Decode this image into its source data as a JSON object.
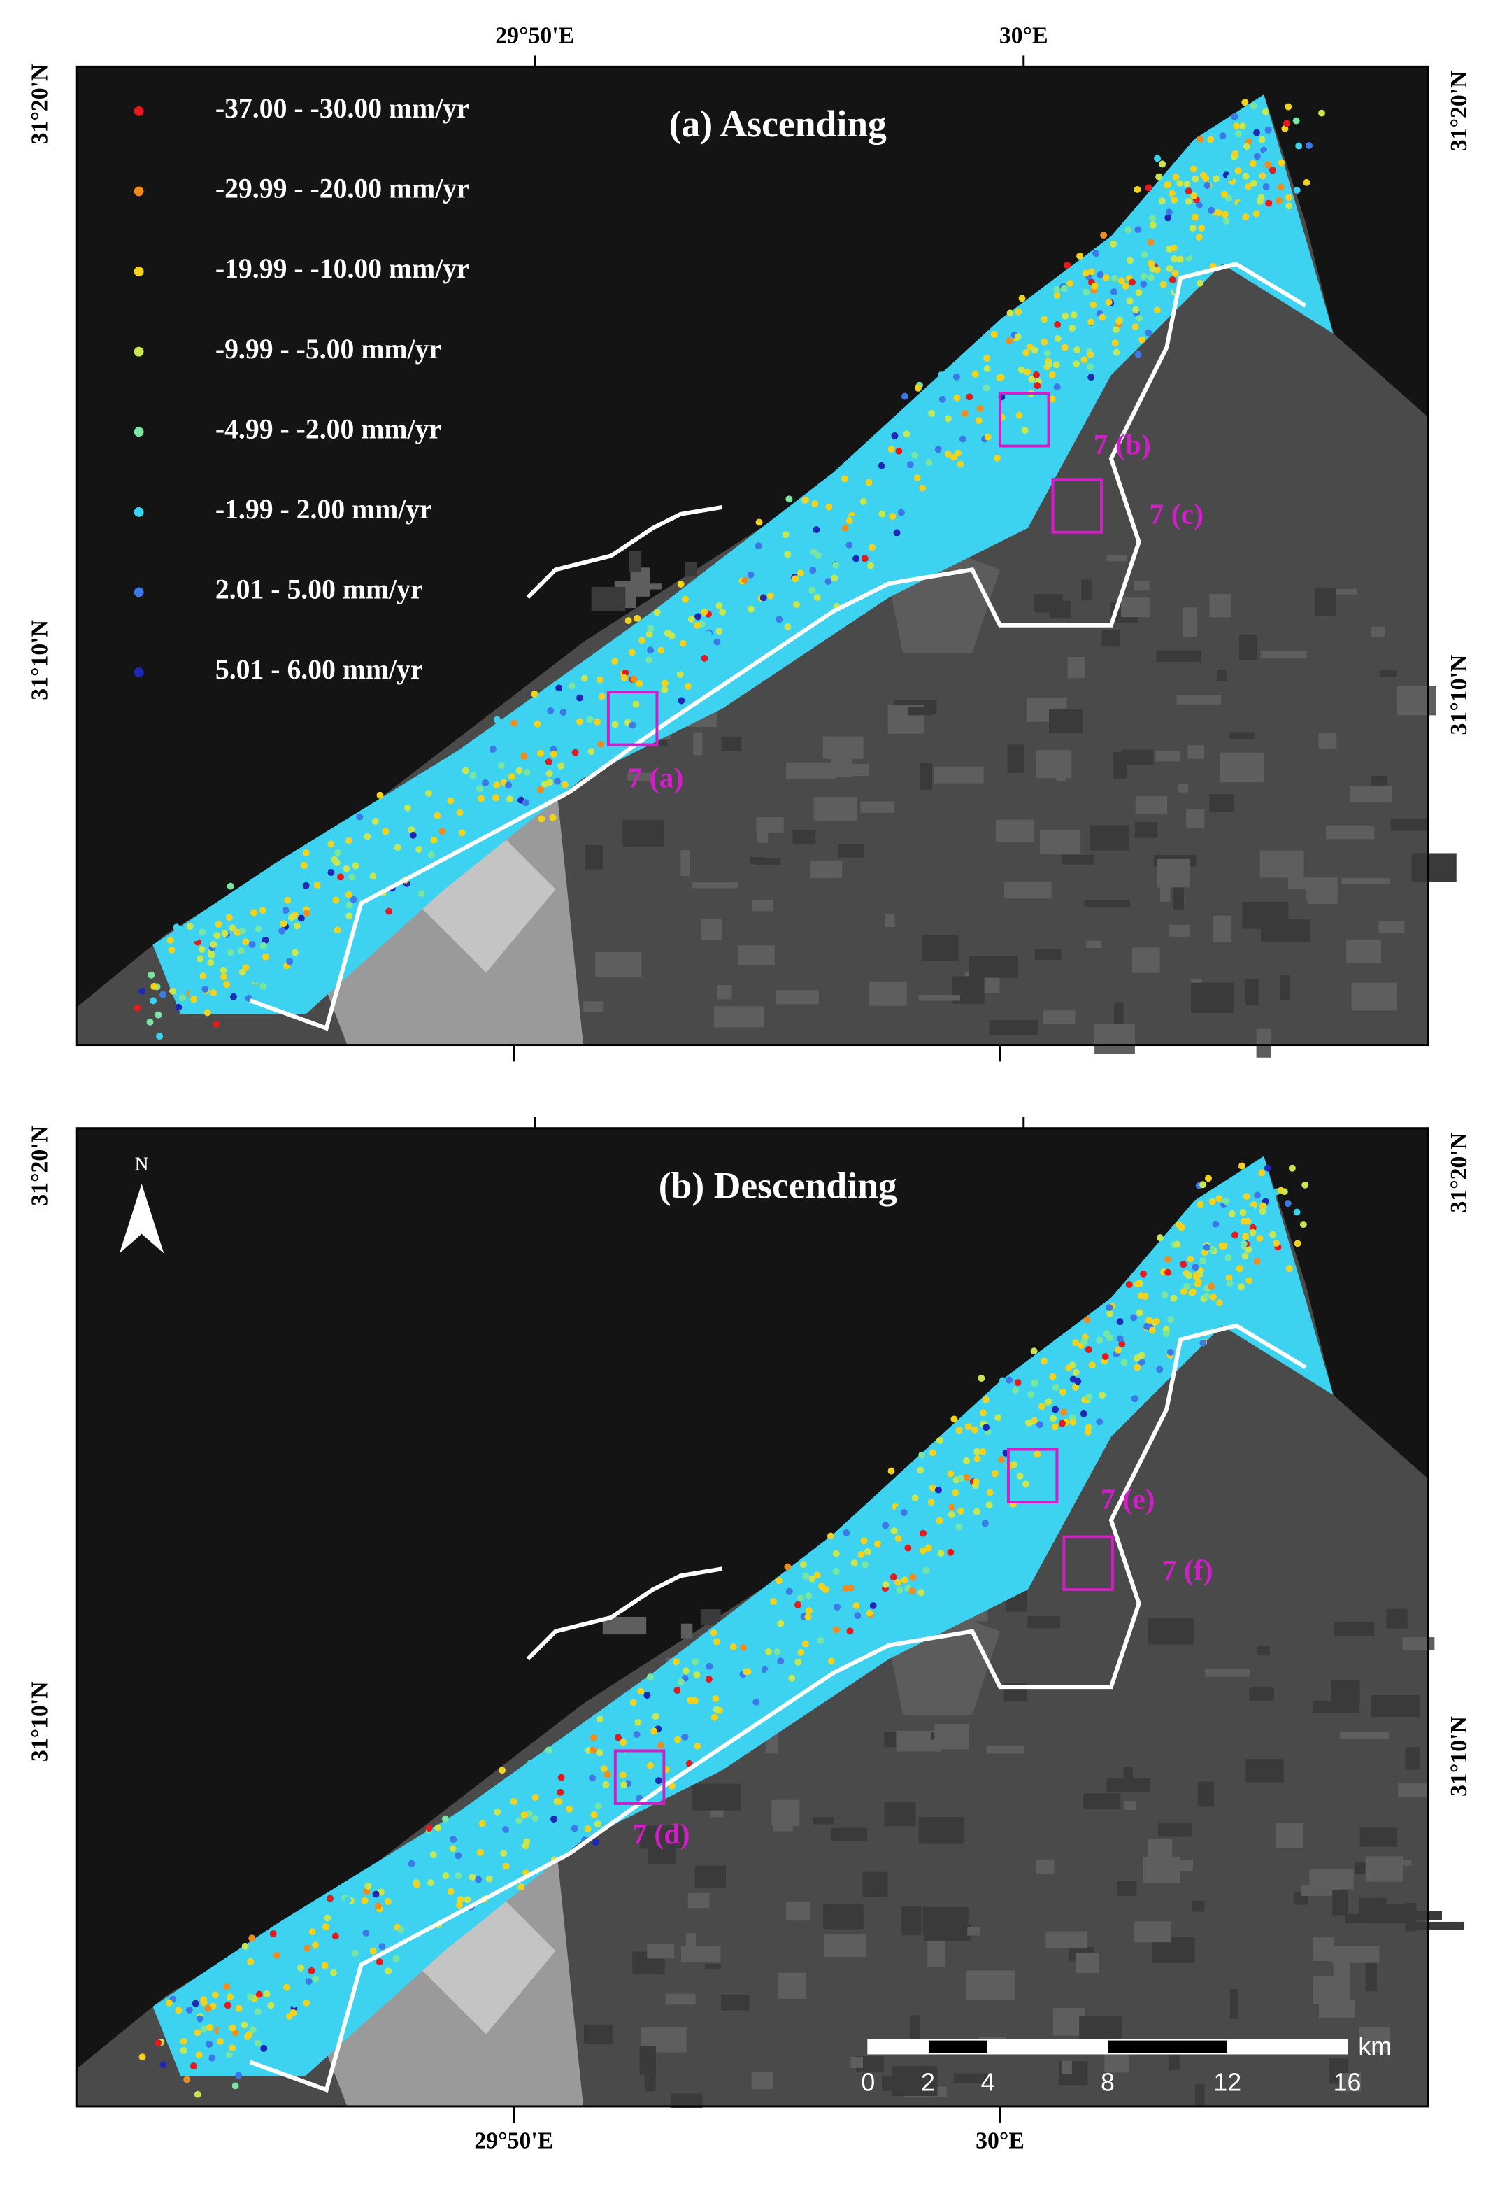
{
  "panels": [
    {
      "title": "(a) Ascending",
      "top_labels": [
        "29°50'E",
        "30°E"
      ],
      "left_labels": [
        "31°20'N",
        "31°10'N"
      ],
      "right_labels": [
        "31°20'N",
        "31°10'N"
      ],
      "boxes": [
        "7 (a)",
        "7 (b)",
        "7 (c)"
      ]
    },
    {
      "title": "(b) Descending",
      "bottom_labels": [
        "29°50'E",
        "30°E"
      ],
      "left_labels": [
        "31°20'N",
        "31°10'N"
      ],
      "right_labels": [
        "31°20'N",
        "31°10'N"
      ],
      "boxes": [
        "7 (d)",
        "7 (e)",
        "7 (f)"
      ]
    }
  ],
  "legend": [
    {
      "label": "-37.00 - -30.00 mm/yr",
      "color": "#e41a1c"
    },
    {
      "label": "-29.99 - -20.00 mm/yr",
      "color": "#f08c1e"
    },
    {
      "label": "-19.99 - -10.00 mm/yr",
      "color": "#f2d21c"
    },
    {
      "label": "-9.99 - -5.00 mm/yr",
      "color": "#c8e650"
    },
    {
      "label": "-4.99 - -2.00 mm/yr",
      "color": "#78e6a0"
    },
    {
      "label": "-1.99 - 2.00 mm/yr",
      "color": "#3cd2f0"
    },
    {
      "label": "2.01 - 5.00 mm/yr",
      "color": "#3c78e6"
    },
    {
      "label": "5.01 - 6.00 mm/yr",
      "color": "#1e28b4"
    }
  ],
  "north": "N",
  "scale_bar": {
    "ticks": [
      0,
      2,
      4,
      8,
      12,
      16
    ],
    "unit": "km"
  }
}
